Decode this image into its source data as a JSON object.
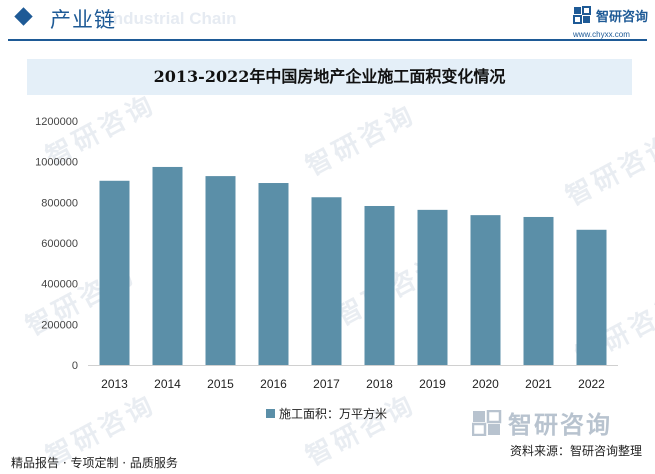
{
  "header": {
    "title": "产业链",
    "bg_text": "Industrial Chain",
    "brand": "智研咨询",
    "url": "www.chyxx.com"
  },
  "colors": {
    "brand": "#1e5a96",
    "bar": "#5b8fa8",
    "title_band": "#e4eff8"
  },
  "chart_data": {
    "type": "bar",
    "title": "2013-2022年中国房地产企业施工面积变化情况",
    "categories": [
      "2013",
      "2014",
      "2015",
      "2016",
      "2017",
      "2018",
      "2019",
      "2020",
      "2021",
      "2022"
    ],
    "series": [
      {
        "name": "施工面积：万平方米",
        "values": [
          906000,
          974000,
          929000,
          895000,
          825000,
          782000,
          763000,
          737000,
          728000,
          665000
        ]
      }
    ],
    "ylim": [
      0,
      1200000
    ],
    "yticks": [
      0,
      200000,
      400000,
      600000,
      800000,
      1000000,
      1200000
    ],
    "grid": false,
    "legend_position": "bottom"
  },
  "footer": {
    "brand_large": "智研咨询",
    "left": "精品报告 · 专项定制 · 品质服务",
    "source": "资料来源：智研咨询整理"
  }
}
